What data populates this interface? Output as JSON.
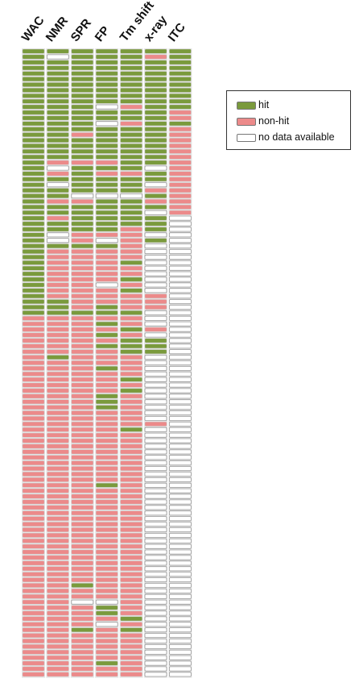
{
  "chart_data": {
    "type": "heatmap",
    "columns": [
      "WAC",
      "NMR",
      "SPR",
      "FP",
      "Tm shift",
      "x-ray",
      "ITC"
    ],
    "row_count": 113,
    "legend": [
      {
        "key": "H",
        "label": "hit",
        "color": "#7a9a3c"
      },
      {
        "key": "N",
        "label": "non-hit",
        "color": "#ec8a8a"
      },
      {
        "key": "W",
        "label": "no data available",
        "color": "#ffffff"
      }
    ],
    "legend_placement": "right",
    "rows": [
      "HHHHHHH",
      "HWHHHNH",
      "HHHHHHH",
      "HHHHHHH",
      "HHHHHHH",
      "HHHHHHH",
      "HHHHHHH",
      "HHHHHHH",
      "HHHHHHH",
      "HHHHHHH",
      "HHHWNHH",
      "HHHHHHN",
      "HHHHHHN",
      "HHHWNHH",
      "HHHHHHN",
      "HHNHHHN",
      "HHHHHHN",
      "HHHHHHN",
      "HHHHHHN",
      "HHHHHHN",
      "HNNNHHN",
      "HWHHHWN",
      "HNHNNHN",
      "HHHHHHN",
      "HWHHHWN",
      "HHHHHNN",
      "HHWWWHN",
      "HNNHHNN",
      "HHHHHHN",
      "HHHHHWN",
      "HNHHHHW",
      "HHHHHHW",
      "HHHHNHW",
      "HWNNNWW",
      "HWNWNHW",
      "HHHHNWW",
      "HNNNNWW",
      "HNNNNWW",
      "HNNNHWW",
      "HNNNNWW",
      "HNNNNWW",
      "HNNNHWW",
      "HNNWNWW",
      "HNNNHWW",
      "HNNNNNW",
      "HHNNNNW",
      "HHNHNNW",
      "HHHHHWW",
      "NNNNNWW",
      "NNNHNWW",
      "NNNNHNW",
      "NNNHNWW",
      "NNNNHHW",
      "NNNHHHW",
      "NNNNHHW",
      "NHNNNWW",
      "NNNNNWW",
      "NNNHNWW",
      "NNNNNWW",
      "NNNNHWW",
      "NNNNNWW",
      "NNNNHWW",
      "NNNHNWW",
      "NNNHNWW",
      "NNNHNWW",
      "NNNNNWW",
      "NNNNNWW",
      "NNNNNNW",
      "NNNNHWW",
      "NNNNNWW",
      "NNNNNWW",
      "NNNNNWW",
      "NNNNNWW",
      "NNNNNWW",
      "NNNNNWW",
      "NNNNNWW",
      "NNNNNWW",
      "NNNNNWW",
      "NNNHNWW",
      "NNNNNWW",
      "NNNNNWW",
      "NNNNNWW",
      "NNNNNWW",
      "NNNNNWW",
      "NNNNNWW",
      "NNNNNWW",
      "NNNNNWW",
      "NNNNNWW",
      "NNNNNWW",
      "NNNNNWW",
      "NNNNNWW",
      "NNNNNWW",
      "NNNNNWW",
      "NNNNNWW",
      "NNNNNWW",
      "NNNNNWW",
      "NNHNNWW",
      "NNNNNWW",
      "NNNNNWW",
      "NNWWNWW",
      "NNNHNWW",
      "NNNHNWW",
      "NNNNHWW",
      "NNNWNWW",
      "NNHNHWW",
      "NNNNNWW",
      "NNNNNWW",
      "NNNNNWW",
      "NNNNNWW",
      "NNNNNWW",
      "NNNHNWW",
      "NNNNNWW",
      "NNNNNWW"
    ]
  }
}
